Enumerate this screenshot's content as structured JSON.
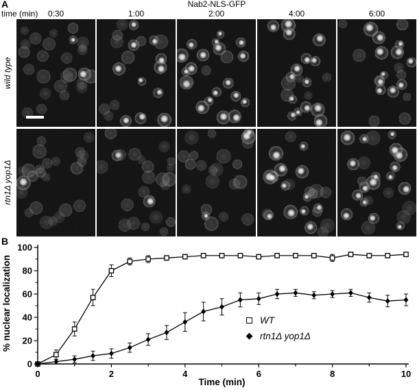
{
  "panel_a": {
    "label": "A",
    "title": "Nab2-NLS-GFP",
    "time_axis_label": "time (min)",
    "timepoints": [
      "0:30",
      "1:00",
      "2:00",
      "4:00",
      "6:00"
    ],
    "rows": [
      {
        "label": "wild type",
        "bright_fractions": [
          0.15,
          0.4,
          0.8,
          0.85,
          0.8
        ]
      },
      {
        "label": "rtn1Δ yop1Δ",
        "bright_fractions": [
          0.05,
          0.12,
          0.25,
          0.55,
          0.65
        ]
      }
    ]
  },
  "panel_b": {
    "label": "B"
  },
  "chart_data": {
    "type": "line",
    "title": "",
    "xlabel": "Time (min)",
    "ylabel": "% nuclear localization",
    "xlim": [
      0,
      10
    ],
    "ylim": [
      0,
      100
    ],
    "xticks": [
      0,
      1,
      2,
      3,
      4,
      5,
      6,
      7,
      8,
      9,
      10
    ],
    "xtick_labels": [
      "0",
      "",
      "2",
      "",
      "4",
      "",
      "6",
      "",
      "8",
      "",
      "10"
    ],
    "yticks": [
      0,
      20,
      40,
      60,
      80,
      100
    ],
    "yticks_minor": [
      10,
      30,
      50,
      70,
      90
    ],
    "grid": false,
    "legend_position": "inside-right",
    "x": [
      0,
      0.5,
      1,
      1.5,
      2,
      2.5,
      3,
      3.5,
      4,
      4.5,
      5,
      5.5,
      6,
      6.5,
      7,
      7.5,
      8,
      8.5,
      9,
      9.5,
      10
    ],
    "series": [
      {
        "name": "WT",
        "marker": "open-square",
        "color": "#000000",
        "values": [
          0,
          8,
          30,
          57,
          80,
          88,
          90,
          91,
          92,
          93,
          93,
          93,
          92,
          93,
          93,
          93,
          91,
          94,
          93,
          93,
          94
        ],
        "errors": [
          1,
          4,
          6,
          7,
          5,
          3,
          3,
          2,
          2,
          2,
          2,
          2,
          2,
          2,
          2,
          2,
          3,
          2,
          2,
          2,
          2
        ]
      },
      {
        "name": "rtn1Δ yop1Δ",
        "marker": "filled-diamond",
        "color": "#000000",
        "values": [
          0,
          2,
          4,
          7,
          9,
          14,
          21,
          27,
          36,
          45,
          49,
          55,
          56,
          60,
          61,
          59,
          60,
          61,
          57,
          54,
          55
        ],
        "errors": [
          1,
          2,
          3,
          4,
          4,
          4,
          5,
          6,
          8,
          8,
          7,
          6,
          5,
          4,
          3,
          3,
          3,
          3,
          4,
          5,
          5
        ]
      }
    ]
  }
}
